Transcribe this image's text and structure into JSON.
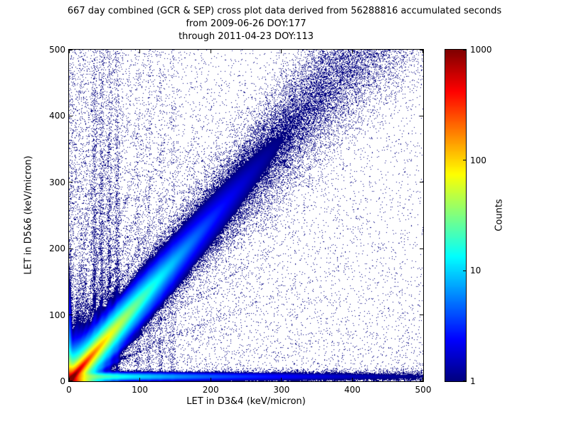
{
  "title": {
    "line1": "667 day combined (GCR & SEP) cross plot data derived from 56288816 accumulated seconds",
    "line2": "from 2009-06-26 DOY:177",
    "line3": "through 2011-04-23 DOY:113"
  },
  "chart_data": {
    "type": "heatmap",
    "title": "667 day combined (GCR & SEP) cross plot data derived from 56288816 accumulated seconds from 2009-06-26 DOY:177 through 2011-04-23 DOY:113",
    "xlabel": "LET in D3&4 (keV/micron)",
    "ylabel": "LET in D5&6 (keV/micron)",
    "xlim": [
      0,
      500
    ],
    "ylim": [
      0,
      500
    ],
    "xticks": [
      0,
      100,
      200,
      300,
      400,
      500
    ],
    "yticks": [
      0,
      100,
      200,
      300,
      400,
      500
    ],
    "grid": false,
    "colorbar": {
      "label": "Counts",
      "scale": "log",
      "min": 1,
      "max": 1000,
      "ticks": [
        1,
        10,
        100,
        1000
      ],
      "colormap": "jet"
    },
    "density_model": {
      "seed": 177,
      "speckle_prob": 0.85,
      "background": {
        "uniform": 0.013,
        "left_amp": 0.18,
        "left_scale": 80,
        "left_yfade": 0.35,
        "bottom_amp": 0.05,
        "bottom_scale": 180
      },
      "diagonal_band": {
        "slope": 1.22,
        "width0": 6,
        "width_growth": 0.13,
        "amp_near": 30,
        "near_scale": 45,
        "amp_far": 2.2,
        "far_scale": 260,
        "halo_amp": 0.5,
        "halo_scale": 90,
        "halo_width0": 30,
        "halo_width_growth": 0.25
      },
      "core": {
        "amp": 1200,
        "scale": 5
      },
      "diag_streaks": [
        {
          "amp": 1500,
          "len": 18,
          "width": 2
        },
        {
          "amp": 200,
          "len": 55,
          "width": 5
        },
        {
          "amp": 40,
          "len": 90,
          "width": 12
        }
      ],
      "bottom_band": {
        "y0": 7,
        "width0": 3,
        "width_growth": 0.004,
        "terms": [
          [
            30,
            45
          ],
          [
            12,
            130
          ],
          [
            2.0,
            500
          ]
        ],
        "hot_amp": 250,
        "hot_scale": 12,
        "hot_width": 3
      },
      "left_edge": {
        "width": 2.5,
        "terms": [
          [
            120,
            14
          ],
          [
            20,
            50
          ]
        ]
      },
      "rays": {
        "slopes": [
          0.45,
          0.7,
          0.95,
          1.65,
          2.05,
          2.6,
          3.4,
          4.6,
          6.5,
          9.5
        ],
        "amps": [
          0.5,
          0.6,
          0.7,
          1.0,
          0.95,
          0.9,
          0.85,
          0.8,
          0.75,
          0.7
        ],
        "width": 2.2,
        "near_amp": 6,
        "near_scale": 35,
        "far_amp": 0.9,
        "far_scale": 150
      },
      "vertical_streaks": {
        "x": [
          36,
          46,
          57,
          68,
          98,
          113,
          129,
          146
        ],
        "amps": [
          0.8,
          0.8,
          0.8,
          0.8,
          0.3,
          0.3,
          0.3,
          0.3
        ],
        "width": 2.2,
        "yscale": 280
      }
    }
  }
}
